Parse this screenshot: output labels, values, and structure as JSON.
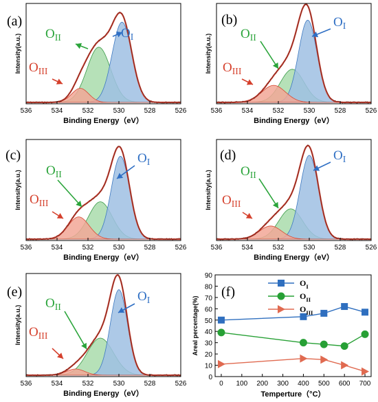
{
  "colors": {
    "o1_fill": "#9fc0e3",
    "o1_stroke": "#3c78c0",
    "o1_label": "#2f6fc4",
    "o2_fill": "#a9dcac",
    "o2_stroke": "#3a9a48",
    "o2_label": "#2aa43a",
    "o3_fill": "#f2a796",
    "o3_stroke": "#d64a35",
    "o3_label": "#d5402c",
    "envelope": "#c8463a",
    "data": "#7a1f12",
    "series_o1": "#2f6fbf",
    "series_o2": "#27a035",
    "series_o3": "#e06a50"
  },
  "panel_labels": [
    "(a)",
    "(b)",
    "(c)",
    "(d)",
    "(e)",
    "(f)"
  ],
  "chart_data": [
    {
      "type": "area",
      "panel": "(a)",
      "xlabel": "Binding Energy（eV）",
      "ylabel": "Intensity(a.u.)",
      "x_ticks": [
        536,
        534,
        532,
        530,
        528,
        526
      ],
      "xlim": [
        536,
        526
      ],
      "peaks": [
        {
          "name": "O",
          "sub": "I",
          "center": 529.8,
          "height": 0.8,
          "fwhm": 1.5
        },
        {
          "name": "O",
          "sub": "II",
          "center": 531.3,
          "height": 0.55,
          "fwhm": 1.8
        },
        {
          "name": "O",
          "sub": "III",
          "center": 532.5,
          "height": 0.14,
          "fwhm": 1.3
        }
      ]
    },
    {
      "type": "area",
      "panel": "(b)",
      "xlabel": "Binding Energy（eV）",
      "ylabel": "Intensity(a.u.)",
      "x_ticks": [
        536,
        534,
        532,
        530,
        528,
        526
      ],
      "xlim": [
        536,
        526
      ],
      "peaks": [
        {
          "name": "O",
          "sub": "I",
          "center": 530.1,
          "height": 0.82,
          "fwhm": 1.4
        },
        {
          "name": "O",
          "sub": "II",
          "center": 531.1,
          "height": 0.33,
          "fwhm": 1.8
        },
        {
          "name": "O",
          "sub": "III",
          "center": 532.3,
          "height": 0.17,
          "fwhm": 1.8
        }
      ]
    },
    {
      "type": "area",
      "panel": "(c)",
      "xlabel": "Binding Energy（eV）",
      "ylabel": "Intensity(a.u.)",
      "x_ticks": [
        536,
        534,
        532,
        530,
        528,
        526
      ],
      "xlim": [
        536,
        526
      ],
      "peaks": [
        {
          "name": "O",
          "sub": "I",
          "center": 529.9,
          "height": 0.82,
          "fwhm": 1.4
        },
        {
          "name": "O",
          "sub": "II",
          "center": 531.2,
          "height": 0.37,
          "fwhm": 1.8
        },
        {
          "name": "O",
          "sub": "III",
          "center": 532.6,
          "height": 0.22,
          "fwhm": 1.6
        }
      ]
    },
    {
      "type": "area",
      "panel": "(d)",
      "xlabel": "Binding Energy（eV）",
      "ylabel": "Intensity(a.u.)",
      "x_ticks": [
        536,
        534,
        532,
        530,
        528,
        526
      ],
      "xlim": [
        536,
        526
      ],
      "peaks": [
        {
          "name": "O",
          "sub": "I",
          "center": 530.0,
          "height": 0.83,
          "fwhm": 1.4
        },
        {
          "name": "O",
          "sub": "II",
          "center": 531.2,
          "height": 0.3,
          "fwhm": 1.8
        },
        {
          "name": "O",
          "sub": "III",
          "center": 532.5,
          "height": 0.13,
          "fwhm": 1.7
        }
      ]
    },
    {
      "type": "area",
      "panel": "(e)",
      "xlabel": "Binding Energy（eV）",
      "ylabel": "Intensity(a.u.)",
      "x_ticks": [
        536,
        534,
        532,
        530,
        528,
        526
      ],
      "xlim": [
        536,
        526
      ],
      "peaks": [
        {
          "name": "O",
          "sub": "I",
          "center": 530.0,
          "height": 0.83,
          "fwhm": 1.3
        },
        {
          "name": "O",
          "sub": "II",
          "center": 531.2,
          "height": 0.36,
          "fwhm": 2.0
        },
        {
          "name": "O",
          "sub": "III",
          "center": 532.8,
          "height": 0.06,
          "fwhm": 1.4
        }
      ]
    },
    {
      "type": "line",
      "panel": "(f)",
      "xlabel": "Temperture（°C）",
      "ylabel": "Areal percentage(%)",
      "x": [
        0,
        400,
        500,
        600,
        700
      ],
      "x_ticks": [
        0,
        100,
        200,
        300,
        400,
        500,
        600,
        700
      ],
      "xlim": [
        -30,
        730
      ],
      "y_ticks": [
        0,
        10,
        20,
        30,
        40,
        50,
        60,
        70,
        80,
        90
      ],
      "ylim": [
        0,
        90
      ],
      "legend_position": "top",
      "series": [
        {
          "name": "O",
          "sub": "I",
          "marker": "square",
          "values": [
            50,
            53,
            56,
            62,
            57
          ]
        },
        {
          "name": "O",
          "sub": "II",
          "marker": "circle",
          "values": [
            39,
            30,
            28.5,
            27,
            37.5
          ]
        },
        {
          "name": "O",
          "sub": "III",
          "marker": "triangle",
          "values": [
            11,
            16,
            15,
            10,
            4.5
          ]
        }
      ]
    }
  ]
}
